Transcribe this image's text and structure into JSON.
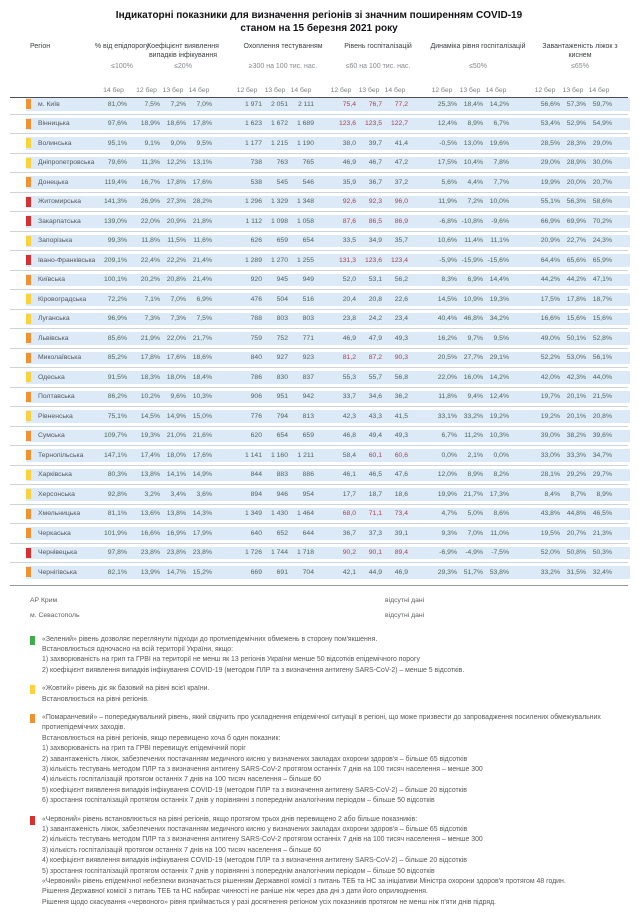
{
  "title": {
    "line1": "Індикаторні показники для визначення регіонів зі значним поширенням COVID-19",
    "line2": "станом на 15 березня 2021 року"
  },
  "table": {
    "region_header": "Регіон",
    "groups": [
      {
        "label": "% від епідпорогу",
        "threshold": "≤100%",
        "dates": [
          "14 бер"
        ]
      },
      {
        "label": "Коефіцієнт виявлення випадків інфікування",
        "threshold": "≤20%",
        "dates": [
          "12 бер",
          "13 бер",
          "14 бер"
        ]
      },
      {
        "label": "Охоплення тестуванням",
        "threshold": "≥300 на 100 тис. нас.",
        "dates": [
          "12 бер",
          "13 бер",
          "14 бер"
        ]
      },
      {
        "label": "Рівень госпіталізацій",
        "threshold": "≤60 на 100 тис. нас.",
        "dates": [
          "12 бер",
          "13 бер",
          "14 бер"
        ]
      },
      {
        "label": "Динаміка рівня госпіталізацій",
        "threshold": "≤50%",
        "dates": [
          "12 бер",
          "13 бер",
          "14 бер"
        ]
      },
      {
        "label": "Завантаженість ліжок з киснем",
        "threshold": "≤65%",
        "dates": [
          "12 бер",
          "13 бер",
          "14 бер"
        ]
      }
    ],
    "hosp_alert_threshold": 60,
    "rows": [
      {
        "region": "м. Київ",
        "level": "orange",
        "values": [
          [
            "81,0%"
          ],
          [
            "7,5%",
            "7,2%",
            "7,0%"
          ],
          [
            "1 971",
            "2 051",
            "2 111"
          ],
          [
            "75,4",
            "76,7",
            "77,2"
          ],
          [
            "25,3%",
            "18,4%",
            "14,2%"
          ],
          [
            "56,6%",
            "57,3%",
            "59,7%"
          ]
        ]
      },
      {
        "region": "Вінницька",
        "level": "orange",
        "values": [
          [
            "97,6%"
          ],
          [
            "18,9%",
            "18,6%",
            "17,8%"
          ],
          [
            "1 623",
            "1 672",
            "1 689"
          ],
          [
            "123,6",
            "123,5",
            "122,7"
          ],
          [
            "12,4%",
            "8,9%",
            "6,7%"
          ],
          [
            "53,4%",
            "52,9%",
            "54,9%"
          ]
        ]
      },
      {
        "region": "Волинська",
        "level": "yellow",
        "values": [
          [
            "95,1%"
          ],
          [
            "9,1%",
            "9,0%",
            "9,5%"
          ],
          [
            "1 177",
            "1 215",
            "1 190"
          ],
          [
            "38,0",
            "39,7",
            "41,4"
          ],
          [
            "-0,5%",
            "13,0%",
            "19,6%"
          ],
          [
            "28,5%",
            "28,3%",
            "29,0%"
          ]
        ]
      },
      {
        "region": "Дніпропетровська",
        "level": "yellow",
        "values": [
          [
            "79,6%"
          ],
          [
            "11,3%",
            "12,2%",
            "13,1%"
          ],
          [
            "738",
            "763",
            "765"
          ],
          [
            "46,9",
            "46,7",
            "47,2"
          ],
          [
            "17,5%",
            "10,4%",
            "7,8%"
          ],
          [
            "29,0%",
            "28,9%",
            "30,0%"
          ]
        ]
      },
      {
        "region": "Донецька",
        "level": "orange",
        "values": [
          [
            "119,4%"
          ],
          [
            "16,7%",
            "17,8%",
            "17,6%"
          ],
          [
            "538",
            "545",
            "546"
          ],
          [
            "35,9",
            "36,7",
            "37,2"
          ],
          [
            "5,6%",
            "4,4%",
            "7,7%"
          ],
          [
            "19,9%",
            "20,0%",
            "20,7%"
          ]
        ]
      },
      {
        "region": "Житомирська",
        "level": "red",
        "values": [
          [
            "141,3%"
          ],
          [
            "26,9%",
            "27,3%",
            "28,2%"
          ],
          [
            "1 296",
            "1 329",
            "1 348"
          ],
          [
            "92,6",
            "92,3",
            "96,0"
          ],
          [
            "11,9%",
            "7,2%",
            "10,0%"
          ],
          [
            "55,1%",
            "56,3%",
            "58,6%"
          ]
        ]
      },
      {
        "region": "Закарпатська",
        "level": "red",
        "values": [
          [
            "139,0%"
          ],
          [
            "22,0%",
            "20,9%",
            "21,8%"
          ],
          [
            "1 112",
            "1 098",
            "1 058"
          ],
          [
            "87,6",
            "86,5",
            "86,9"
          ],
          [
            "-6,8%",
            "-10,8%",
            "-9,6%"
          ],
          [
            "66,9%",
            "69,9%",
            "70,2%"
          ]
        ]
      },
      {
        "region": "Запорізька",
        "level": "yellow",
        "values": [
          [
            "99,3%"
          ],
          [
            "11,8%",
            "11,5%",
            "11,6%"
          ],
          [
            "626",
            "659",
            "654"
          ],
          [
            "33,5",
            "34,9",
            "35,7"
          ],
          [
            "10,6%",
            "11,4%",
            "11,1%"
          ],
          [
            "20,9%",
            "22,7%",
            "24,3%"
          ]
        ]
      },
      {
        "region": "Івано-Франківська",
        "level": "red",
        "values": [
          [
            "209,1%"
          ],
          [
            "22,4%",
            "22,2%",
            "21,4%"
          ],
          [
            "1 289",
            "1 270",
            "1 255"
          ],
          [
            "131,3",
            "123,6",
            "123,4"
          ],
          [
            "-5,9%",
            "-15,9%",
            "-15,6%"
          ],
          [
            "64,4%",
            "65,6%",
            "65,9%"
          ]
        ]
      },
      {
        "region": "Київська",
        "level": "orange",
        "values": [
          [
            "100,1%"
          ],
          [
            "20,2%",
            "20,8%",
            "21,4%"
          ],
          [
            "920",
            "945",
            "949"
          ],
          [
            "52,0",
            "53,1",
            "56,2"
          ],
          [
            "8,3%",
            "6,9%",
            "14,4%"
          ],
          [
            "44,2%",
            "44,2%",
            "47,1%"
          ]
        ]
      },
      {
        "region": "Кіровоградська",
        "level": "yellow",
        "values": [
          [
            "72,2%"
          ],
          [
            "7,1%",
            "7,0%",
            "6,9%"
          ],
          [
            "476",
            "504",
            "516"
          ],
          [
            "20,4",
            "20,8",
            "22,6"
          ],
          [
            "14,5%",
            "10,9%",
            "19,3%"
          ],
          [
            "17,5%",
            "17,8%",
            "18,7%"
          ]
        ]
      },
      {
        "region": "Луганська",
        "level": "yellow",
        "values": [
          [
            "96,9%"
          ],
          [
            "7,3%",
            "7,3%",
            "7,5%"
          ],
          [
            "788",
            "803",
            "803"
          ],
          [
            "23,8",
            "24,2",
            "23,4"
          ],
          [
            "40,4%",
            "46,8%",
            "34,2%"
          ],
          [
            "16,6%",
            "15,6%",
            "15,6%"
          ]
        ]
      },
      {
        "region": "Львівська",
        "level": "orange",
        "values": [
          [
            "85,6%"
          ],
          [
            "21,9%",
            "22,0%",
            "21,7%"
          ],
          [
            "759",
            "752",
            "771"
          ],
          [
            "46,9",
            "47,9",
            "49,3"
          ],
          [
            "16,2%",
            "9,7%",
            "9,5%"
          ],
          [
            "49,0%",
            "50,1%",
            "52,8%"
          ]
        ]
      },
      {
        "region": "Миколаївська",
        "level": "orange",
        "values": [
          [
            "85,2%"
          ],
          [
            "17,8%",
            "17,6%",
            "18,6%"
          ],
          [
            "840",
            "927",
            "923"
          ],
          [
            "81,2",
            "87,2",
            "90,3"
          ],
          [
            "20,5%",
            "27,7%",
            "29,1%"
          ],
          [
            "52,2%",
            "53,0%",
            "56,1%"
          ]
        ]
      },
      {
        "region": "Одеська",
        "level": "yellow",
        "values": [
          [
            "91,5%"
          ],
          [
            "18,3%",
            "18,0%",
            "18,4%"
          ],
          [
            "786",
            "830",
            "837"
          ],
          [
            "55,3",
            "55,7",
            "56,8"
          ],
          [
            "22,0%",
            "16,0%",
            "14,2%"
          ],
          [
            "42,0%",
            "42,3%",
            "44,0%"
          ]
        ]
      },
      {
        "region": "Полтавська",
        "level": "orange",
        "values": [
          [
            "86,2%"
          ],
          [
            "10,2%",
            "9,6%",
            "10,3%"
          ],
          [
            "906",
            "951",
            "942"
          ],
          [
            "33,7",
            "34,6",
            "36,2"
          ],
          [
            "11,8%",
            "9,4%",
            "12,4%"
          ],
          [
            "19,7%",
            "20,1%",
            "21,5%"
          ]
        ]
      },
      {
        "region": "Рівненська",
        "level": "yellow",
        "values": [
          [
            "75,1%"
          ],
          [
            "14,5%",
            "14,9%",
            "15,0%"
          ],
          [
            "776",
            "794",
            "813"
          ],
          [
            "42,3",
            "43,3",
            "41,5"
          ],
          [
            "33,1%",
            "33,2%",
            "19,2%"
          ],
          [
            "19,2%",
            "20,1%",
            "20,8%"
          ]
        ]
      },
      {
        "region": "Сумська",
        "level": "orange",
        "values": [
          [
            "109,7%"
          ],
          [
            "19,3%",
            "21,0%",
            "21,6%"
          ],
          [
            "620",
            "654",
            "659"
          ],
          [
            "46,8",
            "49,4",
            "49,3"
          ],
          [
            "6,7%",
            "11,2%",
            "10,3%"
          ],
          [
            "39,0%",
            "38,2%",
            "39,6%"
          ]
        ]
      },
      {
        "region": "Тернопільська",
        "level": "orange",
        "values": [
          [
            "147,1%"
          ],
          [
            "17,4%",
            "18,0%",
            "17,6%"
          ],
          [
            "1 141",
            "1 160",
            "1 211"
          ],
          [
            "58,4",
            "60,1",
            "60,6"
          ],
          [
            "0,0%",
            "2,1%",
            "0,0%"
          ],
          [
            "33,0%",
            "33,3%",
            "34,7%"
          ]
        ]
      },
      {
        "region": "Харківська",
        "level": "yellow",
        "values": [
          [
            "80,3%"
          ],
          [
            "13,8%",
            "14,1%",
            "14,9%"
          ],
          [
            "844",
            "883",
            "886"
          ],
          [
            "46,1",
            "46,5",
            "47,6"
          ],
          [
            "12,0%",
            "8,9%",
            "8,2%"
          ],
          [
            "28,1%",
            "29,2%",
            "29,7%"
          ]
        ]
      },
      {
        "region": "Херсонська",
        "level": "yellow",
        "values": [
          [
            "92,8%"
          ],
          [
            "3,2%",
            "3,4%",
            "3,6%"
          ],
          [
            "894",
            "946",
            "954"
          ],
          [
            "17,7",
            "18,7",
            "18,6"
          ],
          [
            "19,9%",
            "21,7%",
            "17,3%"
          ],
          [
            "8,4%",
            "8,7%",
            "8,9%"
          ]
        ]
      },
      {
        "region": "Хмельницька",
        "level": "orange",
        "values": [
          [
            "81,1%"
          ],
          [
            "13,6%",
            "13,8%",
            "14,3%"
          ],
          [
            "1 349",
            "1 430",
            "1 464"
          ],
          [
            "68,0",
            "71,1",
            "73,4"
          ],
          [
            "4,7%",
            "5,0%",
            "8,6%"
          ],
          [
            "43,8%",
            "44,8%",
            "46,5%"
          ]
        ]
      },
      {
        "region": "Черкаська",
        "level": "orange",
        "values": [
          [
            "101,9%"
          ],
          [
            "16,6%",
            "16,9%",
            "17,9%"
          ],
          [
            "640",
            "652",
            "644"
          ],
          [
            "36,7",
            "37,3",
            "39,1"
          ],
          [
            "9,3%",
            "7,0%",
            "11,0%"
          ],
          [
            "19,5%",
            "20,7%",
            "21,3%"
          ]
        ]
      },
      {
        "region": "Чернівецька",
        "level": "red",
        "values": [
          [
            "97,8%"
          ],
          [
            "23,8%",
            "23,8%",
            "23,8%"
          ],
          [
            "1 726",
            "1 744",
            "1 718"
          ],
          [
            "90,2",
            "90,1",
            "89,4"
          ],
          [
            "-6,9%",
            "-4,9%",
            "-7,5%"
          ],
          [
            "52,0%",
            "50,8%",
            "50,3%"
          ]
        ]
      },
      {
        "region": "Чернігівська",
        "level": "orange",
        "values": [
          [
            "82,1%"
          ],
          [
            "13,9%",
            "14,7%",
            "15,2%"
          ],
          [
            "669",
            "691",
            "704"
          ],
          [
            "42,1",
            "44,9",
            "46,9"
          ],
          [
            "29,3%",
            "51,7%",
            "53,8%"
          ],
          [
            "33,2%",
            "31,5%",
            "32,4%"
          ]
        ]
      }
    ],
    "no_data": [
      {
        "region": "АР Крим",
        "note": "відсутні дані"
      },
      {
        "region": "м. Севастополь",
        "note": "відсутні дані"
      }
    ]
  },
  "legend": [
    {
      "level": "green",
      "lines": [
        "«Зелений» рівень дозволяє переглянути підходи до протиепідемічних обмежень в сторону пом'якшення.",
        "Встановлюється одночасно на всій території України, якщо:",
        "1) захворюваність на грип та ГРВІ на території не менш як 13 регіонів України менше 50 відсотків епідемічного порогу",
        "2) коефіцієнт виявлення випадків інфікування COVID-19 (методом ПЛР та з визначення антигену SARS-CoV-2) – менше 5 відсотків."
      ]
    },
    {
      "level": "yellow",
      "lines": [
        "«Жовтий» рівень діє як базовий на рівні всієї країни.",
        "Встановлюється на рівні регіонів."
      ]
    },
    {
      "level": "orange",
      "lines": [
        "«Помаранчевий» – попереджувальний рівень, який свідчить про ускладнення епідемічної ситуації в регіоні, що може призвести до запровадження посилених обмежувальних протиепідемічних заходів.",
        "Встановлюється на рівні регіонів, якщо перевищено хоча б один показник:",
        "1) захворюваність на грип та ГРВІ перевищує епідемічний поріг",
        "2) завантаженість ліжок, забезпечених постачанням медичного кисню у визначених закладах охорони здоров'я – більше 65 відсотків",
        "3) кількість тестувань методом ПЛР та з визначення антигену SARS-CoV-2 протягом останніх 7 днів на 100 тисяч населення – менше 300",
        "4) кількість госпіталізацій протягом останніх 7 днів на 100 тисяч населення – більше 60",
        "5) коефіцієнт виявлення випадків інфікування COVID-19 (методом ПЛР та з визначення антигену SARS-CoV-2) – більше 20 відсотків",
        "6) зростання госпіталізацій протягом останніх 7 днів у порівнянні з попереднім аналогічним періодом – більше 50 відсотків"
      ]
    },
    {
      "level": "red",
      "lines": [
        "«Червоний» рівень встановлюється на рівні регіонів, якщо протягом трьох днів перевищено 2 або більше показників:",
        "1) завантаженість ліжок, забезпечених постачанням медичного кисню у визначених закладах охорони здоров'я – більше 65 відсотків",
        "2) кількість тестувань методом ПЛР та з визначення антигену SARS-CoV-2 протягом останніх 7 днів на 100 тисяч населення – менше 300",
        "3) кількість госпіталізацій протягом останніх 7 днів на 100 тисяч населення – більше 60",
        "4) коефіцієнт виявлення випадків інфікування COVID-19 (методом ПЛР та з визначення антигену SARS-CoV-2) – більше 20 відсотків",
        "5) зростання госпіталізацій протягом останніх 7 днів у порівнянні з попереднім аналогічним періодом – більше 50 відсотків",
        "«Червоний» рівень епідемічної небезпеки визначається рішенням Державної комісії з питань ТЕБ та НС за ініціативи Міністра охорони здоров'я протягом 48 годин.",
        "Рішення Державної комісії з питань ТЕБ та НС набирає чинності не раніше ніж через два дні з дати його оприлюднення.",
        "Рішення щодо скасування «червоного» рівня приймається у разі досягнення регіоном усіх показників протягом не менш ніж п'яти днів підряд."
      ]
    }
  ],
  "colors": {
    "green": "#3eae4c",
    "yellow": "#fdd13b",
    "orange": "#f2922f",
    "red": "#da2f2f",
    "value_text": "#4c685a",
    "alert_text": "#b03f4e",
    "row_bg": "#dce9f6"
  }
}
